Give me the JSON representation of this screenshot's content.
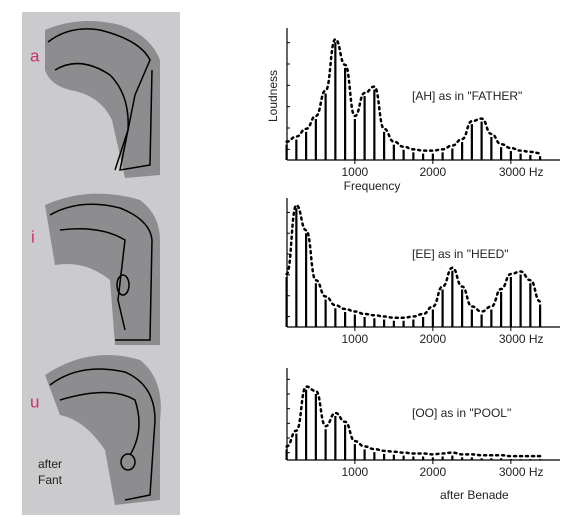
{
  "left_panel": {
    "labels": [
      "a",
      "i",
      "u"
    ],
    "credit": [
      "after",
      "Fant"
    ]
  },
  "credit": "after Benade",
  "chart_data": [
    {
      "type": "bar",
      "annotation": "[AH] as in \"FATHER\"",
      "x_label": "Frequency",
      "y_label": "Loudness",
      "x": [
        125,
        250,
        375,
        500,
        625,
        750,
        875,
        1000,
        1125,
        1250,
        1375,
        1500,
        1625,
        1750,
        1875,
        2000,
        2125,
        2250,
        2375,
        2500,
        2625,
        2750,
        2875,
        3000,
        3125,
        3250,
        3375
      ],
      "values": [
        12,
        16,
        22,
        32,
        52,
        92,
        72,
        32,
        50,
        55,
        22,
        12,
        8,
        6,
        5,
        5,
        6,
        9,
        14,
        28,
        30,
        18,
        10,
        7,
        5,
        4,
        3
      ],
      "xlim": [
        130,
        3630
      ],
      "ylim": [
        0,
        100
      ],
      "xticks": [
        1000,
        2000,
        {
          "value": 3000,
          "label": "3000 Hz"
        }
      ],
      "color": "#000000"
    },
    {
      "type": "bar",
      "annotation": "[EE] as in \"HEED\"",
      "x": [
        125,
        250,
        375,
        500,
        625,
        750,
        875,
        1000,
        1125,
        1250,
        1375,
        1500,
        1625,
        1750,
        1875,
        2000,
        2125,
        2250,
        2375,
        2500,
        2625,
        2750,
        2875,
        3000,
        3125,
        3250,
        3375
      ],
      "values": [
        40,
        95,
        75,
        35,
        22,
        15,
        12,
        10,
        8,
        7,
        6,
        5,
        5,
        6,
        8,
        14,
        30,
        45,
        30,
        14,
        10,
        14,
        28,
        40,
        42,
        35,
        18
      ],
      "xlim": [
        130,
        3630
      ],
      "ylim": [
        0,
        100
      ],
      "xticks": [
        1000,
        2000,
        {
          "value": 3000,
          "label": "3000 Hz"
        }
      ],
      "color": "#000000"
    },
    {
      "type": "bar",
      "annotation": "[OO] as in \"POOL\"",
      "x": [
        125,
        250,
        375,
        500,
        625,
        750,
        875,
        1000,
        1125,
        1250,
        1375,
        1500,
        1625,
        1750,
        1875,
        2000,
        2125,
        2250,
        2375,
        2500,
        2625,
        2750,
        2875,
        3000,
        3125,
        3250,
        3375
      ],
      "values": [
        12,
        30,
        80,
        75,
        35,
        50,
        40,
        18,
        12,
        9,
        7,
        6,
        5,
        4,
        4,
        3,
        4,
        5,
        3,
        3,
        2,
        2,
        2,
        1,
        1,
        1,
        1
      ],
      "xlim": [
        130,
        3630
      ],
      "ylim": [
        0,
        100
      ],
      "xticks": [
        1000,
        2000,
        {
          "value": 3000,
          "label": "3000 Hz"
        }
      ],
      "color": "#000000"
    }
  ]
}
